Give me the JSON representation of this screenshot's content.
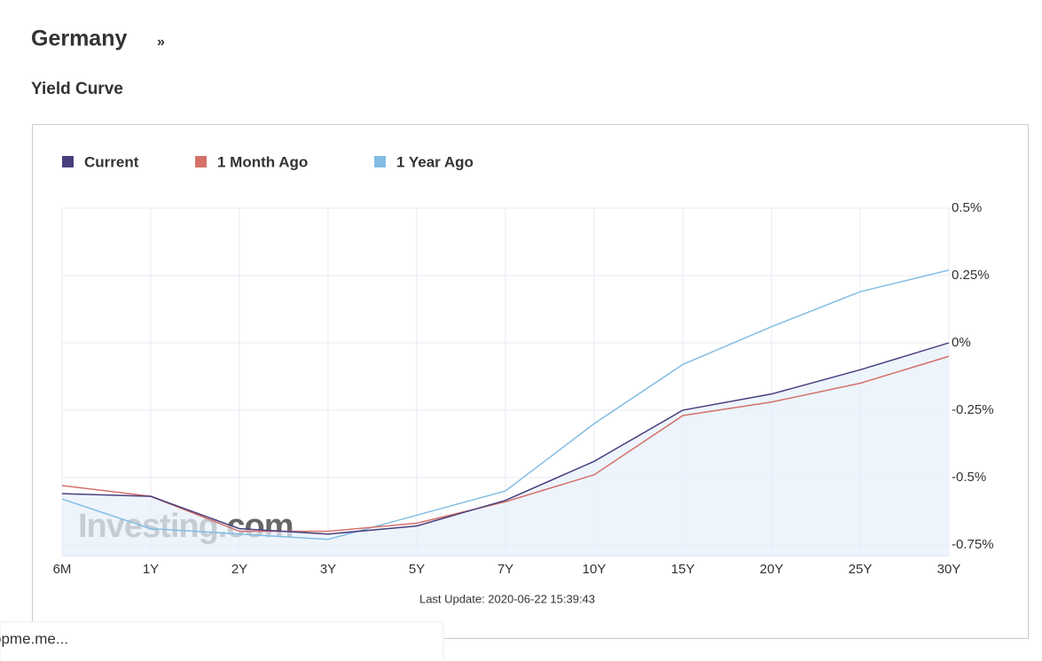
{
  "header": {
    "title": "Germany",
    "arrow": "»",
    "subtitle": "Yield Curve"
  },
  "chart_data": {
    "type": "line",
    "categories": [
      "6M",
      "1Y",
      "2Y",
      "3Y",
      "5Y",
      "7Y",
      "10Y",
      "15Y",
      "20Y",
      "25Y",
      "30Y"
    ],
    "series": [
      {
        "name": "Current",
        "color": "#4a3f7e",
        "area": true,
        "values": [
          -0.56,
          -0.57,
          -0.69,
          -0.71,
          -0.68,
          -0.585,
          -0.44,
          -0.25,
          -0.19,
          -0.1,
          0.0
        ]
      },
      {
        "name": "1 Month Ago",
        "color": "#d4726a",
        "values": [
          -0.53,
          -0.57,
          -0.7,
          -0.7,
          -0.67,
          -0.59,
          -0.49,
          -0.27,
          -0.22,
          -0.15,
          -0.05
        ]
      },
      {
        "name": "1 Year Ago",
        "color": "#83bde3",
        "values": [
          -0.58,
          -0.69,
          -0.71,
          -0.73,
          -0.64,
          -0.55,
          -0.3,
          -0.08,
          0.06,
          0.19,
          0.27
        ]
      }
    ],
    "ylim": [
      -0.79,
      0.5
    ],
    "yticks": [
      {
        "value": 0.5,
        "label": "0.5%"
      },
      {
        "value": 0.25,
        "label": "0.25%"
      },
      {
        "value": 0,
        "label": "0%"
      },
      {
        "value": -0.25,
        "label": "-0.25%"
      },
      {
        "value": -0.5,
        "label": "-0.5%"
      },
      {
        "value": -0.75,
        "label": "-0.75%"
      }
    ],
    "grid": true,
    "legend": "top-left",
    "note": "Last Update: 2020-06-22 15:39:43",
    "watermark": "Investing.com"
  },
  "popup": {
    "text": "opme.me..."
  }
}
